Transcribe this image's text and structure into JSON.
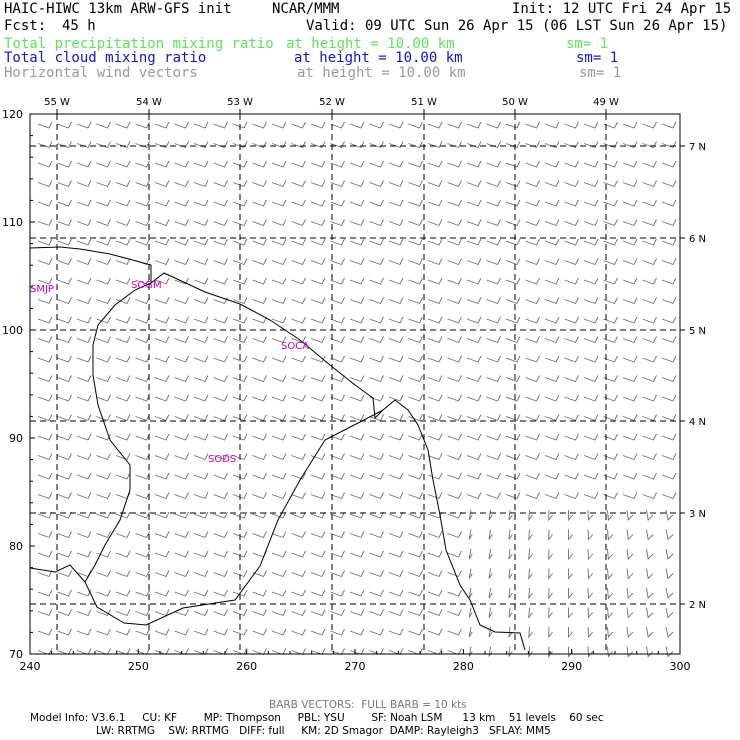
{
  "header": {
    "model": "HAIC-HIWC 13km ARW-GFS init",
    "org": "NCAR/MMM",
    "init": "Init: 12 UTC Fri 24 Apr 15",
    "fcst_label": "Fcst:",
    "fcst_value": "45 h",
    "valid": "Valid: 09 UTC Sun 26 Apr 15 (06 LST Sun 26 Apr 15)"
  },
  "fields": [
    {
      "name": "Total precipitation mixing ratio",
      "height": "at height = 10.00 km",
      "sm": "sm= 1",
      "color": "#5ee35e"
    },
    {
      "name": "Total cloud mixing ratio",
      "height": "at height = 10.00 km",
      "sm": "sm= 1",
      "color": "#1414c8"
    },
    {
      "name": "Horizontal wind vectors",
      "height": "at height = 10.00 km",
      "sm": "sm= 1",
      "color": "#9a9a9a"
    }
  ],
  "axes": {
    "x_ticks": [
      "240",
      "250",
      "260",
      "270",
      "280",
      "290",
      "300"
    ],
    "y_ticks": [
      "70",
      "80",
      "90",
      "100",
      "110",
      "120"
    ],
    "lon_labels": [
      "55 W",
      "54 W",
      "53 W",
      "52 W",
      "51 W",
      "50 W",
      "49 W"
    ],
    "lat_labels": [
      "7 N",
      "6 N",
      "5 N",
      "4 N",
      "3 N",
      "2 N"
    ]
  },
  "stations": [
    "SMJP",
    "SOGM",
    "SOCA",
    "SODS"
  ],
  "station_color": "#c800c8",
  "footer": {
    "barb": "BARB VECTORS:  FULL BARB = 10 kts",
    "line1": "Model Info: V3.6.1     CU: KF        MP: Thompson     PBL: YSU        SF: Noah LSM      13 km    51 levels    60 sec",
    "line2": "LW: RRTMG    SW: RRTMG   DIFF: full     KM: 2D Smagor  DAMP: Rayleigh3   SFLAY: MM5"
  }
}
